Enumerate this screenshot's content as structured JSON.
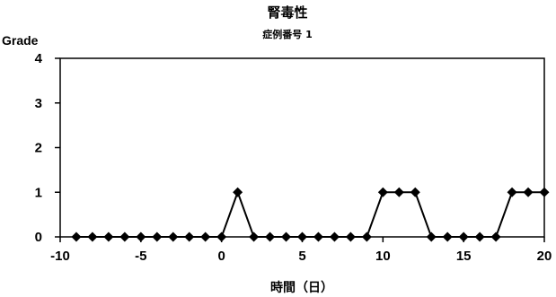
{
  "chart_data": {
    "type": "line",
    "title": "腎毒性",
    "subtitle": "症例番号 1",
    "xlabel": "時間（日）",
    "ylabel": "Grade",
    "xlim": [
      -10,
      20
    ],
    "ylim": [
      0,
      4
    ],
    "xticks": [
      -10,
      -5,
      0,
      5,
      10,
      15,
      20
    ],
    "yticks": [
      0,
      1,
      2,
      3,
      4
    ],
    "grid": false,
    "legend": "none",
    "marker": "diamond",
    "line_color": "#000000",
    "series": [
      {
        "x": [
          -9,
          -8,
          -7,
          -6,
          -5,
          -4,
          -3,
          -2,
          -1,
          0,
          1,
          2,
          3,
          4,
          5,
          6,
          7,
          8,
          9,
          10,
          11,
          12,
          13,
          14,
          15,
          16,
          17,
          18,
          19,
          20
        ],
        "y": [
          0,
          0,
          0,
          0,
          0,
          0,
          0,
          0,
          0,
          0,
          1,
          0,
          0,
          0,
          0,
          0,
          0,
          0,
          0,
          1,
          1,
          1,
          0,
          0,
          0,
          0,
          0,
          1,
          1,
          1
        ]
      }
    ]
  }
}
